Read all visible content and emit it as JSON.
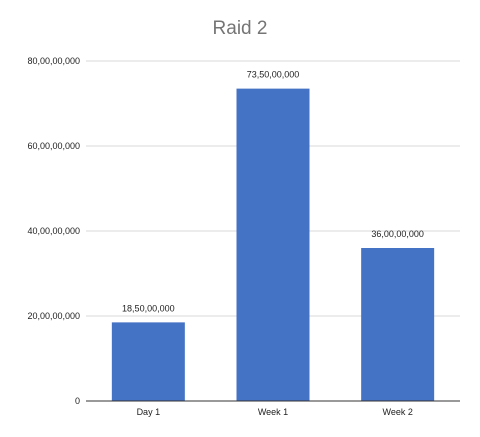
{
  "chart_data": {
    "type": "bar",
    "title": "Raid 2",
    "categories": [
      "Day 1",
      "Week 1",
      "Week 2"
    ],
    "values": [
      185000000,
      735000000,
      360000000
    ],
    "data_labels": [
      "18,50,00,000",
      "73,50,00,000",
      "36,00,00,000"
    ],
    "y_ticks": [
      0,
      200000000,
      400000000,
      600000000,
      800000000
    ],
    "y_tick_labels": [
      "0",
      "20,00,00,000",
      "40,00,00,000",
      "60,00,00,000",
      "80,00,00,000"
    ],
    "ylim": [
      0,
      800000000
    ],
    "xlabel": "",
    "ylabel": "",
    "bar_color": "#4472c4",
    "grid": true,
    "legend": "none"
  }
}
